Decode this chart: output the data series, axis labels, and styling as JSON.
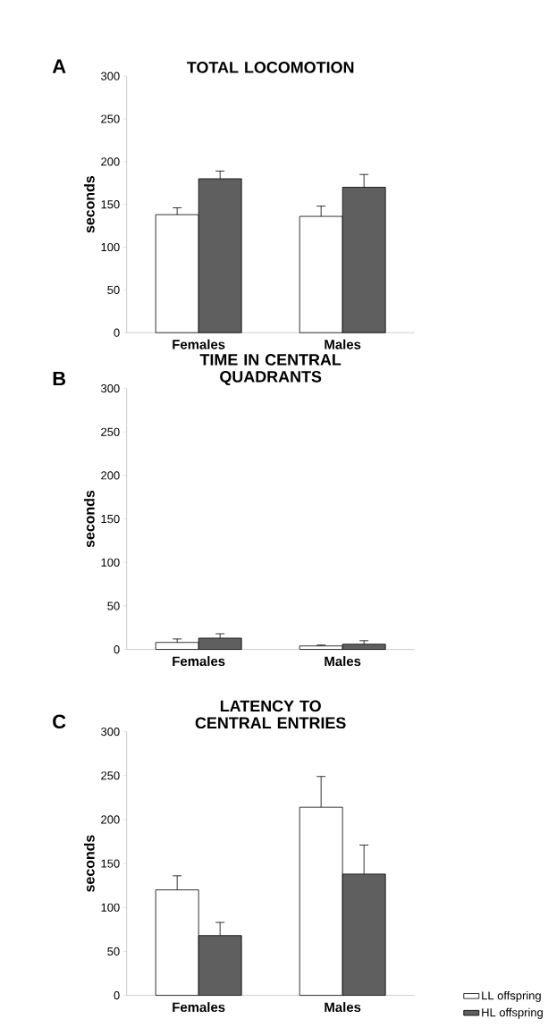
{
  "chart_data": [
    {
      "type": "bar",
      "title": "TOTAL LOCOMOTION",
      "ylabel": "seconds",
      "annotations": [
        "A"
      ],
      "categories": [
        "Females",
        "Males"
      ],
      "ylim": [
        0,
        300
      ],
      "yticks": [
        0,
        50,
        100,
        150,
        200,
        250,
        300
      ],
      "grid": false,
      "legend": false,
      "series": [
        {
          "color": "#ffffff",
          "values": [
            138,
            136
          ],
          "errors": [
            [
              138,
              146
            ],
            [
              136,
              148
            ]
          ]
        },
        {
          "color": "#5f5f5f",
          "values": [
            180,
            170
          ],
          "errors": [
            [
              180,
              189
            ],
            [
              170,
              185
            ]
          ]
        }
      ]
    },
    {
      "type": "bar",
      "title": "TIME IN CENTRAL QUADRANTS",
      "ylabel": "seconds",
      "annotations": [
        "B"
      ],
      "categories": [
        "Females",
        "Males"
      ],
      "ylim": [
        0,
        300
      ],
      "yticks": [
        0,
        50,
        100,
        150,
        200,
        250,
        300
      ],
      "grid": false,
      "legend": false,
      "series": [
        {
          "color": "#ffffff",
          "values": [
            8,
            4
          ],
          "errors": [
            [
              8,
              12
            ],
            [
              4,
              5
            ]
          ]
        },
        {
          "color": "#5f5f5f",
          "values": [
            13,
            6
          ],
          "errors": [
            [
              13,
              18
            ],
            [
              6,
              10
            ]
          ]
        }
      ]
    },
    {
      "type": "bar",
      "title": "LATENCY TO CENTRAL ENTRIES",
      "ylabel": "seconds",
      "annotations": [
        "C"
      ],
      "categories": [
        "Females",
        "Males"
      ],
      "ylim": [
        0,
        300
      ],
      "yticks": [
        0,
        50,
        100,
        150,
        200,
        250,
        300
      ],
      "grid": false,
      "legend": "bottom right",
      "series": [
        {
          "name": "LL offspring",
          "color": "#ffffff",
          "values": [
            120,
            214
          ],
          "errors": [
            [
              120,
              136
            ],
            [
              214,
              249
            ]
          ]
        },
        {
          "name": "HL offspring",
          "color": "#5f5f5f",
          "values": [
            68,
            138
          ],
          "errors": [
            [
              68,
              83
            ],
            [
              138,
              171
            ]
          ]
        }
      ]
    }
  ]
}
